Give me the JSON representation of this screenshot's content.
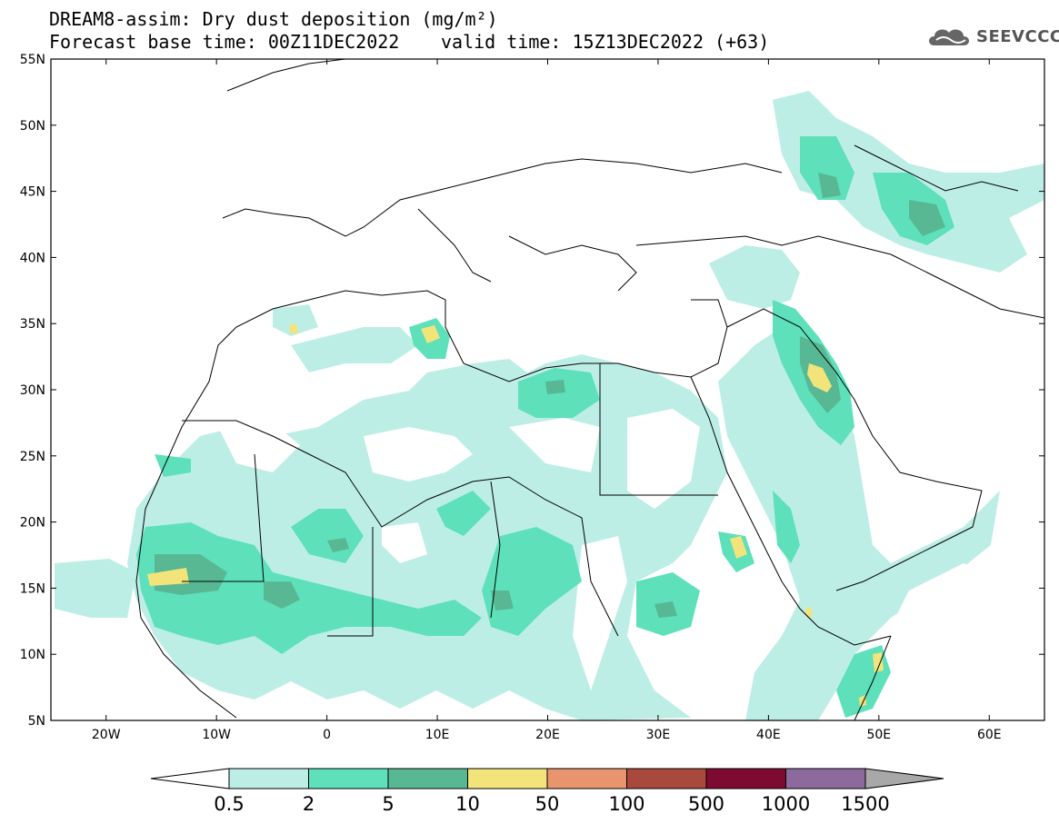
{
  "header": {
    "title": "DREAM8-assim: Dry dust deposition (mg/m²)",
    "base_time": "Forecast base time: 00Z11DEC2022",
    "valid_time": "valid time: 15Z13DEC2022 (+63)"
  },
  "logo": {
    "text": "SEEVCCC",
    "icon": "cloud-logo-icon"
  },
  "map": {
    "lon_range": [
      -25,
      65
    ],
    "lat_range": [
      5,
      55
    ],
    "lat_ticks": [
      "55N",
      "50N",
      "45N",
      "40N",
      "35N",
      "30N",
      "25N",
      "20N",
      "15N",
      "10N",
      "5N"
    ],
    "lon_ticks": [
      "20W",
      "10W",
      "0",
      "10E",
      "20E",
      "30E",
      "40E",
      "50E",
      "60E"
    ],
    "borders_color": "#000000"
  },
  "colorbar": {
    "labels": [
      "0.5",
      "2",
      "5",
      "10",
      "50",
      "100",
      "500",
      "1000",
      "1500"
    ],
    "colors": [
      "#ffffff",
      "#bdeee6",
      "#5ee0bb",
      "#58b894",
      "#f2e47a",
      "#e8946c",
      "#a9483c",
      "#7d0a30",
      "#8c6a9e",
      "#a8a8a8"
    ]
  }
}
